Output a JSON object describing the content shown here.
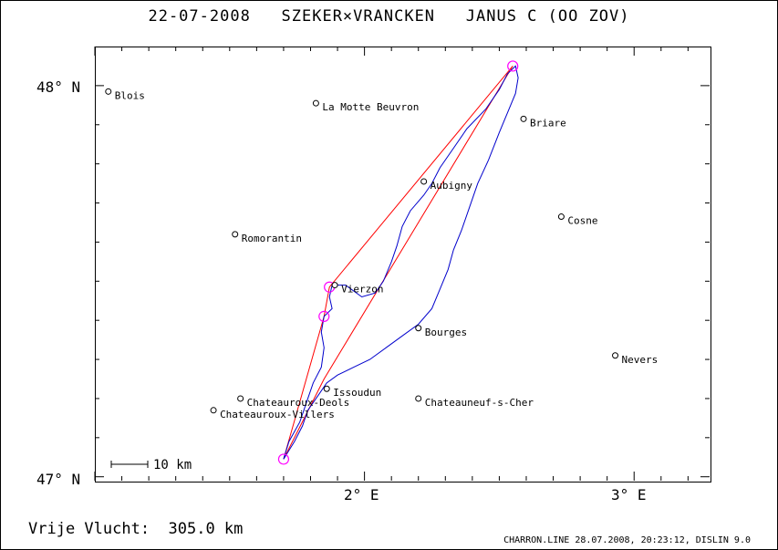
{
  "title": "22-07-2008   SZEKER×VRANCKEN   JANUS C (OO ZOV)",
  "axes": {
    "y_ticks": [
      {
        "label": "48° N",
        "value": 48
      },
      {
        "label": "47° N",
        "value": 47
      }
    ],
    "x_ticks": [
      {
        "label": "2° E",
        "value": 2
      },
      {
        "label": "3° E",
        "value": 3
      }
    ],
    "lon_range": [
      1.0,
      3.28
    ],
    "lat_range": [
      46.99,
      48.1
    ]
  },
  "scale_bar_label": "10 km",
  "cities": [
    {
      "name": "Blois",
      "lon": 1.05,
      "lat": 47.985
    },
    {
      "name": "La Motte Beuvron",
      "lon": 1.82,
      "lat": 47.955
    },
    {
      "name": "Briare",
      "lon": 2.59,
      "lat": 47.915
    },
    {
      "name": "Aubigny",
      "lon": 2.22,
      "lat": 47.755
    },
    {
      "name": "Cosne",
      "lon": 2.73,
      "lat": 47.665
    },
    {
      "name": "Romorantin",
      "lon": 1.52,
      "lat": 47.62
    },
    {
      "name": "Vierzon",
      "lon": 1.89,
      "lat": 47.49
    },
    {
      "name": "Bourges",
      "lon": 2.2,
      "lat": 47.38
    },
    {
      "name": "Nevers",
      "lon": 2.93,
      "lat": 47.31
    },
    {
      "name": "Issoudun",
      "lon": 1.86,
      "lat": 47.225
    },
    {
      "name": "Chateauroux-Deols",
      "lon": 1.54,
      "lat": 47.2
    },
    {
      "name": "Chateauneuf-s-Cher",
      "lon": 2.2,
      "lat": 47.2
    },
    {
      "name": "Chateauroux-Villers",
      "lon": 1.44,
      "lat": 47.17
    }
  ],
  "turnpoints": [
    {
      "lon": 1.7,
      "lat": 47.045
    },
    {
      "lon": 1.85,
      "lat": 47.41
    },
    {
      "lon": 1.87,
      "lat": 47.485
    },
    {
      "lon": 2.55,
      "lat": 48.05
    }
  ],
  "task_route": [
    [
      1.7,
      47.045
    ],
    [
      1.85,
      47.41
    ],
    [
      1.87,
      47.485
    ],
    [
      2.55,
      48.05
    ],
    [
      1.85,
      47.25
    ],
    [
      1.7,
      47.045
    ]
  ],
  "track": [
    [
      1.7,
      47.045
    ],
    [
      1.74,
      47.09
    ],
    [
      1.77,
      47.13
    ],
    [
      1.79,
      47.17
    ],
    [
      1.83,
      47.21
    ],
    [
      1.86,
      47.24
    ],
    [
      1.9,
      47.26
    ],
    [
      1.96,
      47.28
    ],
    [
      2.02,
      47.3
    ],
    [
      2.08,
      47.33
    ],
    [
      2.14,
      47.36
    ],
    [
      2.2,
      47.39
    ],
    [
      2.25,
      47.43
    ],
    [
      2.28,
      47.48
    ],
    [
      2.31,
      47.53
    ],
    [
      2.33,
      47.58
    ],
    [
      2.36,
      47.63
    ],
    [
      2.39,
      47.69
    ],
    [
      2.42,
      47.75
    ],
    [
      2.46,
      47.81
    ],
    [
      2.5,
      47.88
    ],
    [
      2.53,
      47.93
    ],
    [
      2.56,
      47.98
    ],
    [
      2.57,
      48.02
    ],
    [
      2.56,
      48.05
    ],
    [
      2.53,
      48.03
    ],
    [
      2.5,
      47.99
    ],
    [
      2.45,
      47.94
    ],
    [
      2.38,
      47.89
    ],
    [
      2.33,
      47.84
    ],
    [
      2.28,
      47.79
    ],
    [
      2.25,
      47.75
    ],
    [
      2.22,
      47.72
    ],
    [
      2.17,
      47.68
    ],
    [
      2.14,
      47.64
    ],
    [
      2.12,
      47.59
    ],
    [
      2.1,
      47.55
    ],
    [
      2.07,
      47.5
    ],
    [
      2.04,
      47.47
    ],
    [
      1.99,
      47.46
    ],
    [
      1.93,
      47.49
    ],
    [
      1.88,
      47.49
    ],
    [
      1.87,
      47.46
    ],
    [
      1.88,
      47.43
    ],
    [
      1.85,
      47.41
    ],
    [
      1.84,
      47.37
    ],
    [
      1.85,
      47.33
    ],
    [
      1.84,
      47.28
    ],
    [
      1.81,
      47.24
    ],
    [
      1.79,
      47.2
    ],
    [
      1.76,
      47.14
    ],
    [
      1.72,
      47.09
    ],
    [
      1.7,
      47.045
    ]
  ],
  "footer_left": "Vrije Vlucht:  305.0 km",
  "footer_right": "CHARRON.LINE 28.07.2008, 20:23:12, DISLIN 9.0",
  "colors": {
    "track": "#0000cc",
    "route": "#ff0000",
    "turnpoint": "#ff00ff",
    "frame": "#000000"
  }
}
